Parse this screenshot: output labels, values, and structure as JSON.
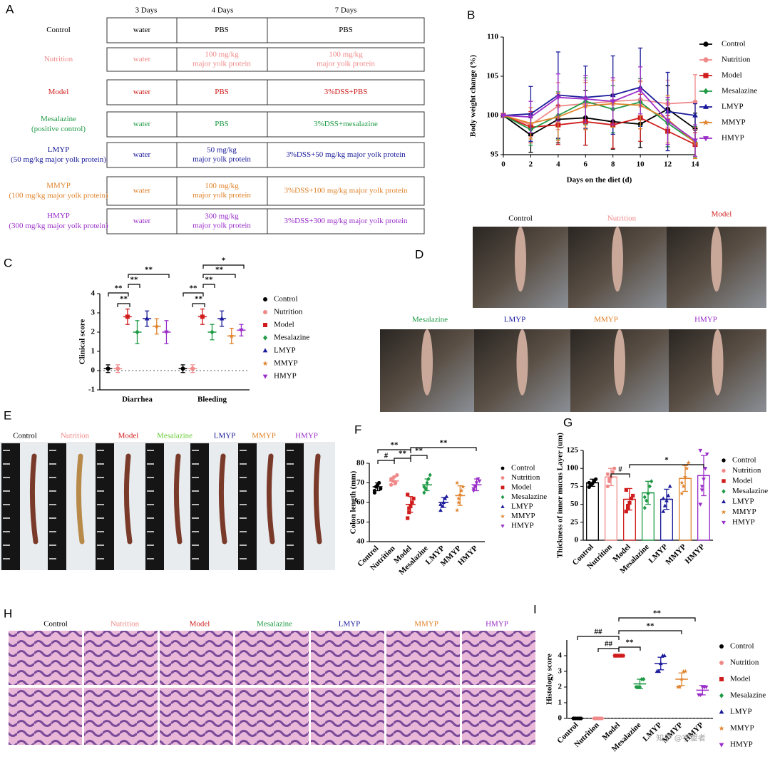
{
  "panel_labels": [
    "A",
    "B",
    "C",
    "D",
    "E",
    "F",
    "G",
    "H",
    "I"
  ],
  "table": {
    "header": [
      "3 Days",
      "4 Days",
      "7 Days"
    ],
    "rows": [
      {
        "label": [
          "Control"
        ],
        "color": "#000000",
        "cells": [
          [
            "water"
          ],
          [
            "PBS"
          ],
          [
            "PBS"
          ]
        ]
      },
      {
        "label": [
          "Nutrition"
        ],
        "color": "#f08a8a",
        "cells": [
          [
            "water"
          ],
          [
            "100 mg/kg",
            "major yolk protein"
          ],
          [
            "100 mg/kg",
            "major yolk protein"
          ]
        ]
      },
      {
        "label": [
          "Model"
        ],
        "color": "#d01c1c",
        "cells": [
          [
            "water"
          ],
          [
            "PBS"
          ],
          [
            "3%DSS+PBS"
          ]
        ]
      },
      {
        "label": [
          "Mesalazine",
          "(positive control)"
        ],
        "color": "#1f9a45",
        "cells": [
          [
            "water"
          ],
          [
            "PBS"
          ],
          [
            "3%DSS+mesalazine"
          ]
        ]
      },
      {
        "label": [
          "LMYP",
          "(50 mg/kg major yolk protein)"
        ],
        "color": "#1a1a9a",
        "cells": [
          [
            "water"
          ],
          [
            "50 mg/kg",
            "major yolk protein"
          ],
          [
            "3%DSS+50 mg/kg major yolk protein"
          ]
        ]
      },
      {
        "label": [
          "MMYP",
          "(100 mg/kg major yolk protein)"
        ],
        "color": "#e0822a",
        "cells": [
          [
            "water"
          ],
          [
            "100 mg/kg",
            "major yolk protein"
          ],
          [
            "3%DSS+100 mg/kg major yolk protein"
          ]
        ]
      },
      {
        "label": [
          "HMYP",
          "(300 mg/kg major yolk protein)"
        ],
        "color": "#9a2ec8",
        "cells": [
          [
            "water"
          ],
          [
            "300 mg/kg",
            "major yolk protein"
          ],
          [
            "3%DSS+300 mg/kg major yolk protein"
          ]
        ]
      }
    ]
  },
  "chart_data": [
    {
      "type": "line",
      "x_label": "Days on the diet (d)",
      "y_label": "Body weight change (%)",
      "x": [
        0,
        2,
        4,
        6,
        8,
        10,
        12,
        14
      ],
      "xlim": [
        0,
        14
      ],
      "xticks": [
        0,
        2,
        4,
        6,
        8,
        10,
        12,
        14
      ],
      "ylim": [
        95,
        110
      ],
      "yticks": [
        95,
        100,
        105,
        110
      ],
      "series": [
        {
          "name": "Control",
          "color": "#000000",
          "marker": "circle",
          "values": [
            100,
            97.5,
            99.5,
            99.7,
            99.2,
            98.9,
            100.8,
            98.3
          ],
          "errors": [
            0,
            2.2,
            3,
            3.5,
            3.5,
            3,
            3,
            2
          ]
        },
        {
          "name": "Nutrition",
          "color": "#f08a8a",
          "marker": "circle",
          "values": [
            100,
            98.8,
            101.2,
            101.5,
            101.8,
            102,
            101.5,
            101.7
          ],
          "errors": [
            0,
            1.5,
            3,
            3,
            3,
            2.5,
            3,
            3.5
          ]
        },
        {
          "name": "Model",
          "color": "#d01c1c",
          "marker": "square",
          "values": [
            100,
            98.5,
            98.8,
            99.2,
            98.8,
            99.7,
            98,
            96.3
          ],
          "errors": [
            0,
            2,
            2.5,
            3,
            3,
            3,
            2,
            1.5
          ]
        },
        {
          "name": "Mesalazine",
          "color": "#1f9a45",
          "marker": "diamond",
          "values": [
            100,
            98.2,
            100,
            101.8,
            100.8,
            101.7,
            99,
            96.6
          ],
          "errors": [
            0,
            2,
            3,
            3,
            3,
            3,
            3,
            2
          ]
        },
        {
          "name": "LMYP",
          "color": "#1a1a9a",
          "marker": "triangle",
          "values": [
            100,
            100.2,
            102.6,
            102.3,
            102.6,
            103.6,
            100.5,
            100
          ],
          "errors": [
            0,
            3.5,
            5.5,
            4,
            5,
            5,
            5,
            1.5
          ]
        },
        {
          "name": "MMYP",
          "color": "#e0822a",
          "marker": "star",
          "values": [
            100,
            99,
            99.8,
            101.2,
            101.5,
            101.3,
            99.5,
            96.5
          ],
          "errors": [
            0,
            2,
            3,
            3,
            3,
            3,
            3,
            2
          ]
        },
        {
          "name": "HMYP",
          "color": "#9a2ec8",
          "marker": "down",
          "values": [
            100,
            99.8,
            102.3,
            102.1,
            101.8,
            103.2,
            99.3,
            96.8
          ],
          "errors": [
            0,
            2,
            3,
            3,
            3,
            3,
            3,
            2
          ]
        }
      ]
    },
    {
      "type": "grouped-dot",
      "y_label": "Clinical score",
      "categories": [
        "Diarrhea",
        "Bleeding"
      ],
      "ylim": [
        -1,
        4
      ],
      "yticks": [
        -1,
        0,
        1,
        2,
        3,
        4
      ],
      "reference_line": 0,
      "series": [
        {
          "name": "Control",
          "color": "#000000",
          "marker": "circle",
          "values": [
            0.1,
            0.1
          ],
          "errors": [
            0.2,
            0.2
          ]
        },
        {
          "name": "Nutrition",
          "color": "#f08a8a",
          "marker": "circle",
          "values": [
            0.1,
            0.1
          ],
          "errors": [
            0.2,
            0.2
          ]
        },
        {
          "name": "Model",
          "color": "#d01c1c",
          "marker": "square",
          "values": [
            2.8,
            2.8
          ],
          "errors": [
            0.4,
            0.4
          ]
        },
        {
          "name": "Mesalazine",
          "color": "#1f9a45",
          "marker": "diamond",
          "values": [
            2,
            2
          ],
          "errors": [
            0.6,
            0.4
          ]
        },
        {
          "name": "LMYP",
          "color": "#1a1a9a",
          "marker": "triangle",
          "values": [
            2.7,
            2.7
          ],
          "errors": [
            0.4,
            0.4
          ]
        },
        {
          "name": "MMYP",
          "color": "#e0822a",
          "marker": "star",
          "values": [
            2.3,
            1.8
          ],
          "errors": [
            0.4,
            0.4
          ]
        },
        {
          "name": "HMYP",
          "color": "#9a2ec8",
          "marker": "down",
          "values": [
            2,
            2.1
          ],
          "errors": [
            0.6,
            0.3
          ]
        }
      ],
      "annotations": [
        "**",
        "**",
        "**",
        "**",
        "**",
        "**",
        "**",
        "**",
        "*"
      ]
    },
    {
      "type": "dot",
      "y_label": "Colon length (mm)",
      "categories": [
        "Control",
        "Nutrition",
        "Model",
        "Mesalazine",
        "LMYP",
        "MMYP",
        "HMYP"
      ],
      "ylim": [
        40,
        80
      ],
      "yticks": [
        40,
        50,
        60,
        70,
        80
      ],
      "colors": [
        "#000000",
        "#f08a8a",
        "#d01c1c",
        "#1f9a45",
        "#1a1a9a",
        "#e0822a",
        "#9a2ec8"
      ],
      "markers": [
        "circle",
        "circle",
        "square",
        "diamond",
        "triangle",
        "star",
        "down"
      ],
      "values": [
        68,
        71,
        59,
        69,
        60,
        63.5,
        69
      ],
      "errors": [
        2,
        2,
        4,
        3,
        2.5,
        5,
        3
      ],
      "points": [
        [
          66,
          68,
          69,
          70,
          67,
          65,
          68
        ],
        [
          69,
          71,
          73,
          70,
          74,
          72
        ],
        [
          52,
          55,
          58,
          60,
          62,
          64,
          57
        ],
        [
          65,
          67,
          70,
          72,
          74,
          68
        ],
        [
          56,
          58,
          60,
          62,
          63,
          59
        ],
        [
          56,
          60,
          64,
          66,
          68,
          70,
          62
        ],
        [
          66,
          68,
          70,
          72,
          71,
          67
        ]
      ],
      "annotations": [
        "**",
        "#",
        "**",
        "**",
        "**"
      ]
    },
    {
      "type": "bar",
      "y_label": "Thickness of inner mucus Layer (um)",
      "categories": [
        "Control",
        "Nutrition",
        "Model",
        "Mesalazine",
        "LMYP",
        "MMYP",
        "HMYP"
      ],
      "ylim": [
        0,
        125
      ],
      "yticks": [
        0,
        25,
        50,
        75,
        100,
        125
      ],
      "colors": [
        "#000000",
        "#f08a8a",
        "#d01c1c",
        "#1f9a45",
        "#1a1a9a",
        "#e0822a",
        "#9a2ec8"
      ],
      "markers": [
        "circle",
        "circle",
        "square",
        "diamond",
        "triangle",
        "star",
        "down"
      ],
      "values": [
        80,
        88,
        57,
        66,
        57,
        86,
        90
      ],
      "errors": [
        5,
        12,
        15,
        16,
        14,
        18,
        28
      ],
      "points": [
        [
          74,
          77,
          79,
          82,
          85,
          80,
          78
        ],
        [
          75,
          82,
          88,
          95,
          100,
          92,
          85
        ],
        [
          40,
          45,
          52,
          58,
          62,
          70,
          48
        ],
        [
          45,
          55,
          65,
          75,
          82,
          60
        ],
        [
          40,
          48,
          55,
          62,
          75,
          58
        ],
        [
          65,
          75,
          88,
          100,
          108,
          80
        ],
        [
          50,
          70,
          85,
          100,
          120,
          125,
          75
        ]
      ],
      "annotations": [
        "#",
        "*"
      ]
    },
    {
      "type": "dot",
      "y_label": "Histology score",
      "categories": [
        "Control",
        "Nutrition",
        "Model",
        "Mesalazine",
        "LMYP",
        "MMYP",
        "HMYP"
      ],
      "ylim": [
        0,
        5
      ],
      "yticks": [
        0,
        1,
        2,
        3,
        4
      ],
      "reference_line": 0,
      "colors": [
        "#000000",
        "#f08a8a",
        "#d01c1c",
        "#1f9a45",
        "#1a1a9a",
        "#e0822a",
        "#9a2ec8"
      ],
      "markers": [
        "circle",
        "circle",
        "square",
        "diamond",
        "triangle",
        "star",
        "down"
      ],
      "values": [
        0,
        0,
        4,
        2.2,
        3.5,
        2.5,
        1.8
      ],
      "errors": [
        0,
        0,
        0,
        0.3,
        0.4,
        0.4,
        0.3
      ],
      "points": [
        [
          0,
          0,
          0,
          0,
          0,
          0
        ],
        [
          0,
          0,
          0,
          0,
          0,
          0
        ],
        [
          4,
          4,
          4,
          4,
          4,
          4
        ],
        [
          2,
          2,
          2,
          2.5,
          2.5
        ],
        [
          3,
          3,
          3.5,
          4,
          4
        ],
        [
          2,
          2,
          2.5,
          3,
          3
        ],
        [
          1.5,
          1.5,
          2,
          2,
          2
        ]
      ],
      "annotations": [
        "##",
        "##",
        "**",
        "**",
        "**"
      ]
    }
  ],
  "photos": {
    "D": {
      "labels": [
        "Control",
        "Nutrition",
        "Model",
        "Mesalazine",
        "LMYP",
        "MMYP",
        "HMYP"
      ],
      "colors": [
        "#000000",
        "#f08a8a",
        "#d01c1c",
        "#1f9a45",
        "#1a1a9a",
        "#e0822a",
        "#9a2ec8"
      ]
    },
    "E": {
      "labels": [
        "Control",
        "Nutrition",
        "Model",
        "Mesalazine",
        "LMYP",
        "MMYP",
        "HMYP"
      ],
      "colors": [
        "#000000",
        "#f08a8a",
        "#d01c1c",
        "#66cc33",
        "#1a1a9a",
        "#e0822a",
        "#9a2ec8"
      ]
    },
    "H": {
      "labels": [
        "Control",
        "Nutrition",
        "Model",
        "Mesalazine",
        "LMYP",
        "MMYP",
        "HMYP"
      ],
      "colors": [
        "#000000",
        "#f08a8a",
        "#d01c1c",
        "#1f9a45",
        "#1a1a9a",
        "#e0822a",
        "#9a2ec8"
      ]
    }
  },
  "watermark": "知乎 @宇望者"
}
